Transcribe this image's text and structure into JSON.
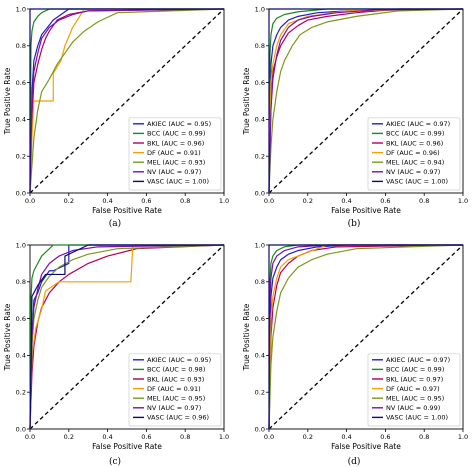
{
  "colors": {
    "AKIEC": "#1f1fc8",
    "BCC": "#1a8a1a",
    "BKL": "#b0005c",
    "DF": "#f5a000",
    "MEL": "#7a9a1a",
    "NV": "#7a10a8",
    "VASC": "#0a0a70",
    "chance": "#000000"
  },
  "chart_data": [
    {
      "type": "line",
      "caption": "(a)",
      "xlabel": "False Positive Rate",
      "ylabel": "True Positive Rate",
      "xlim": [
        0,
        1
      ],
      "ylim": [
        0,
        1
      ],
      "xticks": [
        "0.0",
        "0.2",
        "0.4",
        "0.6",
        "0.8",
        "1.0"
      ],
      "yticks": [
        "0.0",
        "0.2",
        "0.4",
        "0.6",
        "0.8",
        "1.0"
      ],
      "legend_position": "lower-right",
      "series": [
        {
          "name": "AKIEC (AUC = 0.95)",
          "class": "AKIEC",
          "x": [
            0,
            0.01,
            0.02,
            0.04,
            0.06,
            0.09,
            0.12,
            0.16,
            0.2,
            1.0
          ],
          "y": [
            0,
            0.55,
            0.72,
            0.8,
            0.86,
            0.9,
            0.94,
            0.97,
            1.0,
            1.0
          ]
        },
        {
          "name": "BCC (AUC = 0.99)",
          "class": "BCC",
          "x": [
            0,
            0.005,
            0.01,
            0.02,
            0.04,
            0.06,
            0.1,
            1.0
          ],
          "y": [
            0,
            0.8,
            0.88,
            0.93,
            0.96,
            0.98,
            1.0,
            1.0
          ]
        },
        {
          "name": "BKL (AUC = 0.96)",
          "class": "BKL",
          "x": [
            0,
            0.01,
            0.02,
            0.04,
            0.06,
            0.08,
            0.1,
            0.14,
            0.2,
            0.3,
            1.0
          ],
          "y": [
            0,
            0.4,
            0.6,
            0.7,
            0.78,
            0.84,
            0.88,
            0.94,
            0.97,
            0.99,
            1.0
          ]
        },
        {
          "name": "DF (AUC = 0.91)",
          "class": "DF",
          "x": [
            0,
            0.01,
            0.02,
            0.06,
            0.12,
            0.12,
            0.16,
            0.18,
            0.2,
            0.22,
            0.28,
            1.0
          ],
          "y": [
            0,
            0.3,
            0.5,
            0.5,
            0.5,
            0.65,
            0.72,
            0.8,
            0.85,
            0.9,
            1.0,
            1.0
          ]
        },
        {
          "name": "MEL (AUC = 0.93)",
          "class": "MEL",
          "x": [
            0,
            0.02,
            0.04,
            0.06,
            0.1,
            0.14,
            0.18,
            0.22,
            0.28,
            0.35,
            0.45,
            1.0
          ],
          "y": [
            0,
            0.3,
            0.45,
            0.55,
            0.62,
            0.7,
            0.76,
            0.82,
            0.88,
            0.93,
            0.98,
            1.0
          ]
        },
        {
          "name": "NV (AUC = 0.97)",
          "class": "NV",
          "x": [
            0,
            0.01,
            0.02,
            0.04,
            0.06,
            0.1,
            0.15,
            0.22,
            0.3,
            1.0
          ],
          "y": [
            0,
            0.5,
            0.66,
            0.76,
            0.84,
            0.9,
            0.94,
            0.97,
            0.99,
            1.0
          ]
        },
        {
          "name": "VASC (AUC = 1.00)",
          "class": "VASC",
          "x": [
            0,
            0,
            0.06,
            1.0
          ],
          "y": [
            0,
            1.0,
            1.0,
            1.0
          ]
        }
      ]
    },
    {
      "type": "line",
      "caption": "(b)",
      "xlabel": "False Positive Rate",
      "ylabel": "True Positive Rate",
      "xlim": [
        0,
        1
      ],
      "ylim": [
        0,
        1
      ],
      "xticks": [
        "0.0",
        "0.2",
        "0.4",
        "0.6",
        "0.8",
        "1.0"
      ],
      "yticks": [
        "0.0",
        "0.2",
        "0.4",
        "0.6",
        "0.8",
        "1.0"
      ],
      "legend_position": "lower-right",
      "series": [
        {
          "name": "AKIEC (AUC = 0.97)",
          "class": "AKIEC",
          "x": [
            0,
            0.01,
            0.02,
            0.04,
            0.06,
            0.1,
            0.15,
            0.25,
            0.4,
            1.0
          ],
          "y": [
            0,
            0.7,
            0.8,
            0.86,
            0.9,
            0.94,
            0.96,
            0.98,
            0.99,
            1.0
          ]
        },
        {
          "name": "BCC (AUC = 0.99)",
          "class": "BCC",
          "x": [
            0,
            0.005,
            0.01,
            0.02,
            0.04,
            0.08,
            0.15,
            0.3,
            1.0
          ],
          "y": [
            0,
            0.75,
            0.86,
            0.92,
            0.95,
            0.97,
            0.985,
            1.0,
            1.0
          ]
        },
        {
          "name": "BKL (AUC = 0.96)",
          "class": "BKL",
          "x": [
            0,
            0.01,
            0.02,
            0.04,
            0.06,
            0.1,
            0.15,
            0.2,
            0.3,
            0.45,
            0.67,
            1.0
          ],
          "y": [
            0,
            0.5,
            0.66,
            0.74,
            0.8,
            0.87,
            0.91,
            0.94,
            0.96,
            0.98,
            1.0,
            1.0
          ]
        },
        {
          "name": "DF (AUC = 0.96)",
          "class": "DF",
          "x": [
            0,
            0.01,
            0.02,
            0.04,
            0.06,
            0.1,
            0.2,
            0.4,
            1.0
          ],
          "y": [
            0,
            0.6,
            0.7,
            0.8,
            0.86,
            0.92,
            0.96,
            0.99,
            1.0
          ]
        },
        {
          "name": "MEL (AUC = 0.94)",
          "class": "MEL",
          "x": [
            0,
            0.01,
            0.02,
            0.04,
            0.06,
            0.08,
            0.12,
            0.16,
            0.22,
            0.3,
            0.45,
            0.67,
            1.0
          ],
          "y": [
            0,
            0.25,
            0.4,
            0.55,
            0.66,
            0.72,
            0.8,
            0.86,
            0.9,
            0.93,
            0.96,
            0.99,
            1.0
          ]
        },
        {
          "name": "NV (AUC = 0.97)",
          "class": "NV",
          "x": [
            0,
            0.01,
            0.02,
            0.04,
            0.06,
            0.1,
            0.15,
            0.22,
            0.35,
            0.55,
            1.0
          ],
          "y": [
            0,
            0.45,
            0.62,
            0.75,
            0.83,
            0.9,
            0.94,
            0.96,
            0.98,
            0.995,
            1.0
          ]
        },
        {
          "name": "VASC (AUC = 1.00)",
          "class": "VASC",
          "x": [
            0,
            0,
            0.04,
            1.0
          ],
          "y": [
            0,
            1.0,
            1.0,
            1.0
          ]
        }
      ]
    },
    {
      "type": "line",
      "caption": "(c)",
      "xlabel": "False Positive Rate",
      "ylabel": "True Positive Rate",
      "xlim": [
        0,
        1
      ],
      "ylim": [
        0,
        1
      ],
      "xticks": [
        "0.0",
        "0.2",
        "0.4",
        "0.6",
        "0.8",
        "1.0"
      ],
      "yticks": [
        "0.0",
        "0.2",
        "0.4",
        "0.6",
        "0.8",
        "1.0"
      ],
      "legend_position": "lower-right",
      "series": [
        {
          "name": "AKIEC (AUC = 0.95)",
          "class": "AKIEC",
          "x": [
            0,
            0.01,
            0.02,
            0.04,
            0.06,
            0.1,
            0.12,
            0.2,
            0.2,
            1.0
          ],
          "y": [
            0,
            0.5,
            0.7,
            0.74,
            0.8,
            0.86,
            0.86,
            0.9,
            1.0,
            1.0
          ]
        },
        {
          "name": "BCC (AUC = 0.98)",
          "class": "BCC",
          "x": [
            0,
            0.005,
            0.01,
            0.02,
            0.04,
            0.06,
            0.08,
            0.12,
            0.2,
            1.0
          ],
          "y": [
            0,
            0.7,
            0.82,
            0.86,
            0.9,
            0.94,
            0.96,
            1.0,
            1.0,
            1.0
          ]
        },
        {
          "name": "BKL (AUC = 0.93)",
          "class": "BKL",
          "x": [
            0,
            0.01,
            0.02,
            0.04,
            0.06,
            0.1,
            0.15,
            0.2,
            0.3,
            0.4,
            0.55,
            1.0
          ],
          "y": [
            0,
            0.3,
            0.45,
            0.58,
            0.66,
            0.74,
            0.8,
            0.84,
            0.9,
            0.94,
            0.98,
            1.0
          ]
        },
        {
          "name": "DF (AUC = 0.91)",
          "class": "DF",
          "x": [
            0,
            0.01,
            0.03,
            0.06,
            0.08,
            0.15,
            0.25,
            0.35,
            0.52,
            0.53,
            1.0
          ],
          "y": [
            0,
            0.4,
            0.55,
            0.65,
            0.75,
            0.8,
            0.8,
            0.8,
            0.8,
            1.0,
            1.0
          ]
        },
        {
          "name": "MEL (AUC = 0.95)",
          "class": "MEL",
          "x": [
            0,
            0.01,
            0.02,
            0.04,
            0.06,
            0.1,
            0.15,
            0.22,
            0.3,
            0.45,
            1.0
          ],
          "y": [
            0,
            0.45,
            0.6,
            0.7,
            0.77,
            0.83,
            0.88,
            0.92,
            0.95,
            0.98,
            1.0
          ]
        },
        {
          "name": "NV (AUC = 0.97)",
          "class": "NV",
          "x": [
            0,
            0.01,
            0.02,
            0.04,
            0.06,
            0.1,
            0.15,
            0.22,
            0.35,
            1.0
          ],
          "y": [
            0,
            0.5,
            0.66,
            0.76,
            0.84,
            0.9,
            0.94,
            0.97,
            0.99,
            1.0
          ]
        },
        {
          "name": "VASC (AUC = 0.96)",
          "class": "VASC",
          "x": [
            0,
            0.01,
            0.04,
            0.08,
            0.18,
            0.18,
            0.3,
            1.0
          ],
          "y": [
            0,
            0.72,
            0.78,
            0.84,
            0.84,
            0.94,
            1.0,
            1.0
          ]
        }
      ]
    },
    {
      "type": "line",
      "caption": "(d)",
      "xlabel": "False Positive Rate",
      "ylabel": "True Positive Rate",
      "xlim": [
        0,
        1
      ],
      "ylim": [
        0,
        1
      ],
      "xticks": [
        "0.0",
        "0.2",
        "0.4",
        "0.6",
        "0.8",
        "1.0"
      ],
      "yticks": [
        "0.0",
        "0.2",
        "0.4",
        "0.6",
        "0.8",
        "1.0"
      ],
      "legend_position": "lower-right",
      "series": [
        {
          "name": "AKIEC (AUC = 0.97)",
          "class": "AKIEC",
          "x": [
            0,
            0.01,
            0.02,
            0.04,
            0.06,
            0.1,
            0.15,
            0.25,
            0.4,
            1.0
          ],
          "y": [
            0,
            0.72,
            0.82,
            0.88,
            0.92,
            0.95,
            0.97,
            0.99,
            1.0,
            1.0
          ]
        },
        {
          "name": "BCC (AUC = 0.99)",
          "class": "BCC",
          "x": [
            0,
            0.005,
            0.01,
            0.02,
            0.04,
            0.08,
            0.15,
            1.0
          ],
          "y": [
            0,
            0.8,
            0.9,
            0.94,
            0.97,
            0.99,
            1.0,
            1.0
          ]
        },
        {
          "name": "BKL (AUC = 0.97)",
          "class": "BKL",
          "x": [
            0,
            0.01,
            0.02,
            0.04,
            0.06,
            0.1,
            0.15,
            0.22,
            0.35,
            1.0
          ],
          "y": [
            0,
            0.5,
            0.66,
            0.78,
            0.85,
            0.9,
            0.94,
            0.97,
            0.99,
            1.0
          ]
        },
        {
          "name": "DF (AUC = 0.97)",
          "class": "DF",
          "x": [
            0,
            0.01,
            0.02,
            0.04,
            0.06,
            0.1,
            0.2,
            0.3,
            1.0
          ],
          "y": [
            0,
            0.6,
            0.72,
            0.82,
            0.88,
            0.92,
            0.96,
            1.0,
            1.0
          ]
        },
        {
          "name": "MEL (AUC = 0.95)",
          "class": "MEL",
          "x": [
            0,
            0.01,
            0.02,
            0.04,
            0.06,
            0.1,
            0.15,
            0.22,
            0.3,
            0.45,
            1.0
          ],
          "y": [
            0,
            0.35,
            0.5,
            0.64,
            0.74,
            0.82,
            0.88,
            0.92,
            0.95,
            0.98,
            1.0
          ]
        },
        {
          "name": "NV (AUC = 0.99)",
          "class": "NV",
          "x": [
            0,
            0.005,
            0.01,
            0.02,
            0.04,
            0.08,
            0.15,
            0.3,
            1.0
          ],
          "y": [
            0,
            0.7,
            0.82,
            0.9,
            0.94,
            0.97,
            0.99,
            1.0,
            1.0
          ]
        },
        {
          "name": "VASC (AUC = 1.00)",
          "class": "VASC",
          "x": [
            0,
            0,
            0.05,
            1.0
          ],
          "y": [
            0,
            1.0,
            1.0,
            1.0
          ]
        }
      ]
    }
  ]
}
